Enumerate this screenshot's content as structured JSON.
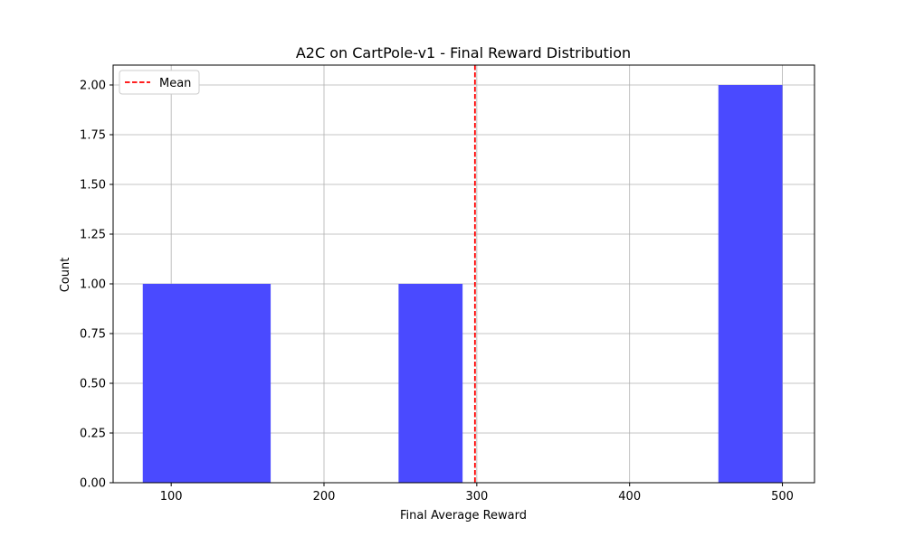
{
  "chart_data": {
    "type": "bar",
    "title": "A2C on CartPole-v1 - Final Reward Distribution",
    "xlabel": "Final Average Reward",
    "ylabel": "Count",
    "xlim": [
      62,
      521
    ],
    "ylim": [
      0,
      2.1
    ],
    "xticks": [
      100,
      200,
      300,
      400,
      500
    ],
    "xtick_labels": [
      "100",
      "200",
      "300",
      "400",
      "500"
    ],
    "yticks": [
      0,
      0.25,
      0.5,
      0.75,
      1.0,
      1.25,
      1.5,
      1.75,
      2.0
    ],
    "ytick_labels": [
      "0.00",
      "0.25",
      "0.50",
      "0.75",
      "1.00",
      "1.25",
      "1.50",
      "1.75",
      "2.00"
    ],
    "grid": true,
    "bar_color": "#4a4aff",
    "bins": [
      {
        "start": 81.4,
        "end": 123.3,
        "count": 1
      },
      {
        "start": 123.3,
        "end": 165.1,
        "count": 1
      },
      {
        "start": 165.1,
        "end": 207.0,
        "count": 0
      },
      {
        "start": 207.0,
        "end": 248.8,
        "count": 0
      },
      {
        "start": 248.8,
        "end": 290.7,
        "count": 1
      },
      {
        "start": 290.7,
        "end": 332.6,
        "count": 0
      },
      {
        "start": 332.6,
        "end": 374.4,
        "count": 0
      },
      {
        "start": 374.4,
        "end": 416.3,
        "count": 0
      },
      {
        "start": 416.3,
        "end": 458.1,
        "count": 0
      },
      {
        "start": 458.1,
        "end": 500.0,
        "count": 2
      }
    ],
    "mean_line": {
      "value": 298.8,
      "label": "Mean",
      "color": "#ff0000",
      "style": "dashed"
    },
    "legend": {
      "position": "top-left",
      "entries": [
        "Mean"
      ]
    }
  }
}
